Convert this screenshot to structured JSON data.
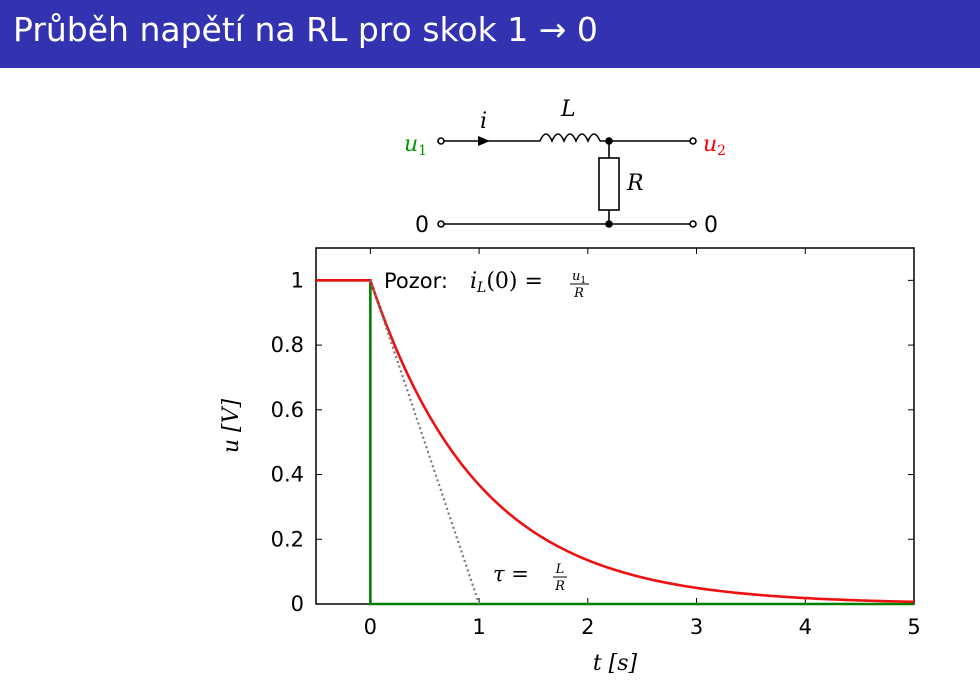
{
  "title": "Průběh napětí na RL pro skok 1 → 0",
  "circuit": {
    "input_label": "u",
    "input_sub": "1",
    "output_label": "u",
    "output_sub": "2",
    "current_label": "i",
    "inductor_label": "L",
    "resistor_label": "R",
    "ground_left": "0",
    "ground_right": "0",
    "input_color": "#009900",
    "output_color": "#ff0000"
  },
  "annotations": {
    "pozor_text": "Pozor:",
    "pozor_lhs": "i",
    "pozor_sub": "L",
    "pozor_arg": "(0) =",
    "pozor_num": "u",
    "pozor_num_sub": "1",
    "pozor_den": "R",
    "tau_lhs": "τ =",
    "tau_num": "L",
    "tau_den": "R"
  },
  "chart_data": {
    "type": "line",
    "xlabel": "t [s]",
    "ylabel": "u [V]",
    "xlim": [
      -0.5,
      5
    ],
    "ylim": [
      0,
      1.1
    ],
    "xticks": [
      "0",
      "1",
      "2",
      "3",
      "4",
      "5"
    ],
    "yticks": [
      "0",
      "0.2",
      "0.4",
      "0.6",
      "0.8",
      "1"
    ],
    "series": [
      {
        "name": "u1",
        "color": "#008000",
        "x": [
          -0.5,
          0,
          0,
          5
        ],
        "y": [
          1,
          1,
          0,
          0
        ]
      },
      {
        "name": "u2",
        "color": "#ee1111",
        "function": "exp_decay",
        "x_start": 0,
        "x_end": 5,
        "tau": 1,
        "pre": [
          [
            -0.5,
            1
          ],
          [
            0,
            1
          ]
        ]
      },
      {
        "name": "tangent",
        "color": "#777777",
        "style": "dotted",
        "x": [
          0,
          1
        ],
        "y": [
          1,
          0
        ]
      }
    ]
  }
}
